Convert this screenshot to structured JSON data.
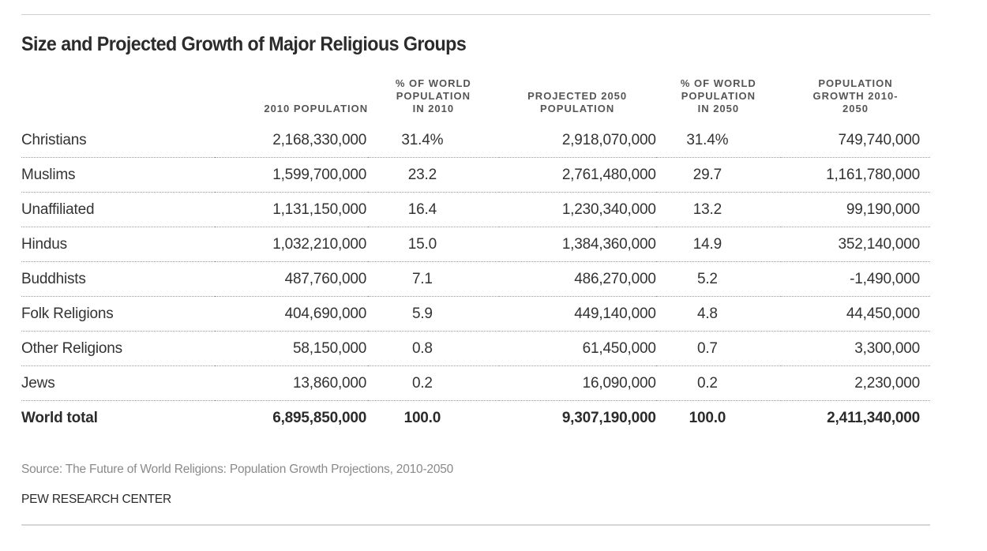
{
  "chart_data": {
    "type": "table",
    "title": "Size and Projected Growth of Major Religious Groups",
    "columns": [
      "",
      "2010 POPULATION",
      "% OF WORLD POPULATION IN 2010",
      "PROJECTED 2050 POPULATION",
      "% OF WORLD POPULATION IN 2050",
      "POPULATION GROWTH 2010-2050"
    ],
    "header_lines": [
      [
        ""
      ],
      [
        "2010 POPULATION"
      ],
      [
        "% OF WORLD",
        "POPULATION",
        "IN 2010"
      ],
      [
        "PROJECTED 2050",
        "POPULATION"
      ],
      [
        "% OF WORLD",
        "POPULATION",
        "IN 2050"
      ],
      [
        "POPULATION",
        "GROWTH 2010-",
        "2050"
      ]
    ],
    "rows": [
      [
        "Christians",
        "2,168,330,000",
        "31.4%",
        "2,918,070,000",
        "31.4%",
        "749,740,000"
      ],
      [
        "Muslims",
        "1,599,700,000",
        "23.2",
        "2,761,480,000",
        "29.7",
        "1,161,780,000"
      ],
      [
        "Unaffiliated",
        "1,131,150,000",
        "16.4",
        "1,230,340,000",
        "13.2",
        "99,190,000"
      ],
      [
        "Hindus",
        "1,032,210,000",
        "15.0",
        "1,384,360,000",
        "14.9",
        "352,140,000"
      ],
      [
        "Buddhists",
        "487,760,000",
        "7.1",
        "486,270,000",
        "5.2",
        "-1,490,000"
      ],
      [
        "Folk Religions",
        "404,690,000",
        "5.9",
        "449,140,000",
        "4.8",
        "44,450,000"
      ],
      [
        "Other Religions",
        "58,150,000",
        "0.8",
        "61,450,000",
        "0.7",
        "3,300,000"
      ],
      [
        "Jews",
        "13,860,000",
        "0.2",
        "16,090,000",
        "0.2",
        "2,230,000"
      ]
    ],
    "total": [
      "World total",
      "6,895,850,000",
      "100.0",
      "9,307,190,000",
      "100.0",
      "2,411,340,000"
    ]
  },
  "footer": {
    "source": "Source: The Future of World Religions: Population Growth Projections, 2010-2050",
    "credit": "PEW RESEARCH CENTER"
  }
}
